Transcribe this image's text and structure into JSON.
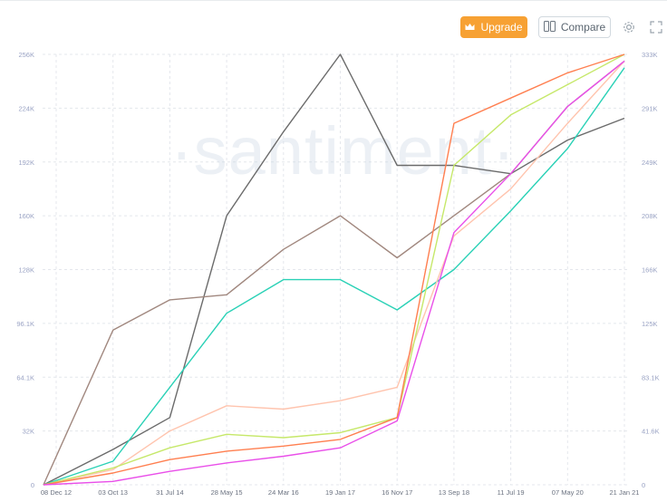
{
  "toolbar": {
    "upgrade_label": "Upgrade",
    "compare_label": "Compare",
    "icons": [
      "crown-icon",
      "compare-icon",
      "settings-icon",
      "fullscreen-icon"
    ]
  },
  "watermark": "·santiment·",
  "chart_data": {
    "type": "line",
    "x": [
      "08 Dec 12",
      "03 Oct 13",
      "31 Jul 14",
      "28 May 15",
      "24 Mar 16",
      "19 Jan 17",
      "16 Nov 17",
      "13 Sep 18",
      "11 Jul 19",
      "07 May 20",
      "21 Jan 21"
    ],
    "left_axis": {
      "ticks": [
        "256K",
        "224K",
        "192K",
        "160K",
        "128K",
        "96.1K",
        "64.1K",
        "32K",
        "0"
      ],
      "ylim": [
        0,
        256000
      ]
    },
    "right_axis": {
      "ticks": [
        "333K",
        "291K",
        "249K",
        "208K",
        "166K",
        "125K",
        "83.1K",
        "41.6K",
        "0"
      ],
      "ylim": [
        0,
        333000
      ]
    },
    "grid": true,
    "series": [
      {
        "color": "#6b6b6b",
        "axis": "left",
        "values": [
          0,
          21000,
          40000,
          160000,
          210000,
          256000,
          190000,
          190000,
          185000,
          205000,
          218000
        ]
      },
      {
        "color": "#a1887f",
        "axis": "left",
        "values": [
          0,
          92000,
          110000,
          113000,
          140000,
          160000,
          135000,
          160000,
          185000,
          225000,
          252000
        ]
      },
      {
        "color": "#2ad1b6",
        "axis": "left",
        "values": [
          0,
          14000,
          58000,
          102000,
          122000,
          122000,
          104000,
          128000,
          163000,
          200000,
          248000
        ]
      },
      {
        "color": "#ffc4ae",
        "axis": "left",
        "values": [
          0,
          9000,
          32000,
          47000,
          45000,
          50000,
          58000,
          148000,
          176000,
          215000,
          252000
        ]
      },
      {
        "color": "#c6e86a",
        "axis": "left",
        "values": [
          0,
          10000,
          22000,
          30000,
          28000,
          31000,
          40000,
          190000,
          220000,
          238000,
          256000
        ]
      },
      {
        "color": "#ff7f50",
        "axis": "left",
        "values": [
          0,
          7000,
          15000,
          20000,
          23000,
          27000,
          40000,
          215000,
          230000,
          245000,
          256000
        ]
      },
      {
        "color": "#e94fe9",
        "axis": "left",
        "values": [
          0,
          2000,
          8000,
          13000,
          17000,
          22000,
          38000,
          150000,
          185000,
          225000,
          252000
        ]
      }
    ]
  }
}
